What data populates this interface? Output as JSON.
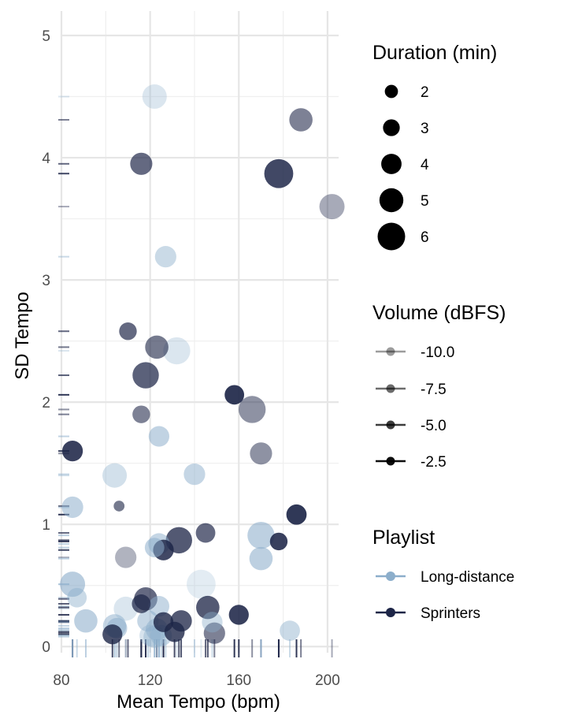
{
  "chart_data": {
    "type": "scatter",
    "xlabel": "Mean Tempo (bpm)",
    "ylabel": "SD Tempo",
    "xlim": [
      80,
      205
    ],
    "ylim": [
      -0.05,
      5.2
    ],
    "x_ticks": [
      80,
      120,
      160,
      200
    ],
    "y_ticks": [
      0,
      1,
      2,
      3,
      4,
      5
    ],
    "grid": true,
    "rug": true,
    "colors": {
      "Long-distance": "#8caecb",
      "Sprinters": "#1d2547"
    },
    "legends": {
      "size": {
        "title": "Duration (min)",
        "items": [
          2,
          3,
          4,
          5,
          6
        ]
      },
      "alpha": {
        "title": "Volume (dBFS)",
        "items": [
          "-10.0",
          "-7.5",
          "-5.0",
          "-2.5"
        ]
      },
      "color": {
        "title": "Playlist",
        "items": [
          "Long-distance",
          "Sprinters"
        ]
      }
    },
    "points": [
      {
        "x": 122,
        "y": 4.5,
        "duration": 4.8,
        "volume": -11.0,
        "playlist": "Long-distance"
      },
      {
        "x": 188,
        "y": 4.31,
        "duration": 4.5,
        "volume": -7.5,
        "playlist": "Sprinters"
      },
      {
        "x": 116,
        "y": 3.95,
        "duration": 4.2,
        "volume": -6.0,
        "playlist": "Sprinters"
      },
      {
        "x": 178,
        "y": 3.87,
        "duration": 6.0,
        "volume": -4.0,
        "playlist": "Sprinters"
      },
      {
        "x": 202,
        "y": 3.6,
        "duration": 5.0,
        "volume": -10.0,
        "playlist": "Sprinters"
      },
      {
        "x": 127,
        "y": 3.19,
        "duration": 4.0,
        "volume": -9.0,
        "playlist": "Long-distance"
      },
      {
        "x": 110,
        "y": 2.58,
        "duration": 3.0,
        "volume": -6.0,
        "playlist": "Sprinters"
      },
      {
        "x": 123,
        "y": 2.45,
        "duration": 4.5,
        "volume": -7.0,
        "playlist": "Sprinters"
      },
      {
        "x": 132,
        "y": 2.42,
        "duration": 5.5,
        "volume": -11.0,
        "playlist": "Long-distance"
      },
      {
        "x": 118,
        "y": 2.22,
        "duration": 5.3,
        "volume": -5.5,
        "playlist": "Sprinters"
      },
      {
        "x": 158,
        "y": 2.06,
        "duration": 3.5,
        "volume": -3.0,
        "playlist": "Sprinters"
      },
      {
        "x": 166,
        "y": 1.94,
        "duration": 5.5,
        "volume": -8.5,
        "playlist": "Sprinters"
      },
      {
        "x": 116,
        "y": 1.9,
        "duration": 3.0,
        "volume": -7.5,
        "playlist": "Sprinters"
      },
      {
        "x": 124,
        "y": 1.72,
        "duration": 3.8,
        "volume": -8.0,
        "playlist": "Long-distance"
      },
      {
        "x": 85,
        "y": 1.6,
        "duration": 3.8,
        "volume": -3.5,
        "playlist": "Sprinters"
      },
      {
        "x": 170,
        "y": 1.58,
        "duration": 4.2,
        "volume": -8.5,
        "playlist": "Sprinters"
      },
      {
        "x": 104,
        "y": 1.4,
        "duration": 4.8,
        "volume": -10.0,
        "playlist": "Long-distance"
      },
      {
        "x": 140,
        "y": 1.41,
        "duration": 4.0,
        "volume": -8.5,
        "playlist": "Long-distance"
      },
      {
        "x": 85,
        "y": 1.14,
        "duration": 4.0,
        "volume": -8.0,
        "playlist": "Long-distance"
      },
      {
        "x": 106,
        "y": 1.15,
        "duration": 1.2,
        "volume": -7.0,
        "playlist": "Sprinters"
      },
      {
        "x": 186,
        "y": 1.08,
        "duration": 3.7,
        "volume": -3.0,
        "playlist": "Sprinters"
      },
      {
        "x": 145,
        "y": 0.93,
        "duration": 3.5,
        "volume": -6.0,
        "playlist": "Sprinters"
      },
      {
        "x": 170,
        "y": 0.91,
        "duration": 5.5,
        "volume": -7.5,
        "playlist": "Long-distance"
      },
      {
        "x": 133,
        "y": 0.87,
        "duration": 5.3,
        "volume": -5.0,
        "playlist": "Sprinters"
      },
      {
        "x": 178,
        "y": 0.86,
        "duration": 3.0,
        "volume": -3.5,
        "playlist": "Sprinters"
      },
      {
        "x": 124,
        "y": 0.84,
        "duration": 4.0,
        "volume": -8.5,
        "playlist": "Long-distance"
      },
      {
        "x": 122,
        "y": 0.81,
        "duration": 3.5,
        "volume": -8.0,
        "playlist": "Long-distance"
      },
      {
        "x": 126,
        "y": 0.79,
        "duration": 3.8,
        "volume": -4.0,
        "playlist": "Sprinters"
      },
      {
        "x": 109,
        "y": 0.73,
        "duration": 4.0,
        "volume": -10.5,
        "playlist": "Sprinters"
      },
      {
        "x": 170,
        "y": 0.72,
        "duration": 4.5,
        "volume": -7.5,
        "playlist": "Long-distance"
      },
      {
        "x": 85,
        "y": 0.51,
        "duration": 5.0,
        "volume": -7.0,
        "playlist": "Long-distance"
      },
      {
        "x": 143,
        "y": 0.51,
        "duration": 6.0,
        "volume": -12.0,
        "playlist": "Long-distance"
      },
      {
        "x": 87,
        "y": 0.4,
        "duration": 3.5,
        "volume": -9.0,
        "playlist": "Long-distance"
      },
      {
        "x": 118,
        "y": 0.39,
        "duration": 4.5,
        "volume": -6.0,
        "playlist": "Sprinters"
      },
      {
        "x": 116,
        "y": 0.35,
        "duration": 3.3,
        "volume": -5.5,
        "playlist": "Sprinters"
      },
      {
        "x": 124,
        "y": 0.33,
        "duration": 3.8,
        "volume": -8.5,
        "playlist": "Long-distance"
      },
      {
        "x": 109,
        "y": 0.31,
        "duration": 4.7,
        "volume": -11.0,
        "playlist": "Long-distance"
      },
      {
        "x": 146,
        "y": 0.32,
        "duration": 4.5,
        "volume": -5.0,
        "playlist": "Sprinters"
      },
      {
        "x": 160,
        "y": 0.26,
        "duration": 3.6,
        "volume": -3.5,
        "playlist": "Sprinters"
      },
      {
        "x": 91,
        "y": 0.21,
        "duration": 4.5,
        "volume": -7.5,
        "playlist": "Long-distance"
      },
      {
        "x": 119,
        "y": 0.21,
        "duration": 4.0,
        "volume": -8.5,
        "playlist": "Long-distance"
      },
      {
        "x": 126,
        "y": 0.2,
        "duration": 3.6,
        "volume": -4.5,
        "playlist": "Sprinters"
      },
      {
        "x": 134,
        "y": 0.21,
        "duration": 4.0,
        "volume": -5.0,
        "playlist": "Sprinters"
      },
      {
        "x": 148,
        "y": 0.2,
        "duration": 3.8,
        "volume": -9.5,
        "playlist": "Long-distance"
      },
      {
        "x": 104,
        "y": 0.17,
        "duration": 4.5,
        "volume": -8.5,
        "playlist": "Long-distance"
      },
      {
        "x": 105,
        "y": 0.15,
        "duration": 3.8,
        "volume": -8.0,
        "playlist": "Long-distance"
      },
      {
        "x": 123,
        "y": 0.14,
        "duration": 4.2,
        "volume": -8.5,
        "playlist": "Long-distance"
      },
      {
        "x": 183,
        "y": 0.13,
        "duration": 3.7,
        "volume": -9.0,
        "playlist": "Long-distance"
      },
      {
        "x": 131,
        "y": 0.12,
        "duration": 3.7,
        "volume": -4.5,
        "playlist": "Sprinters"
      },
      {
        "x": 149,
        "y": 0.11,
        "duration": 4.0,
        "volume": -7.5,
        "playlist": "Sprinters"
      },
      {
        "x": 103,
        "y": 0.1,
        "duration": 3.6,
        "volume": -4.5,
        "playlist": "Sprinters"
      },
      {
        "x": 120,
        "y": 0.09,
        "duration": 4.0,
        "volume": -10.5,
        "playlist": "Long-distance"
      },
      {
        "x": 125,
        "y": 0.09,
        "duration": 4.0,
        "volume": -9.0,
        "playlist": "Long-distance"
      },
      {
        "x": 122,
        "y": 0.08,
        "duration": 4.2,
        "volume": -9.5,
        "playlist": "Long-distance"
      }
    ]
  }
}
